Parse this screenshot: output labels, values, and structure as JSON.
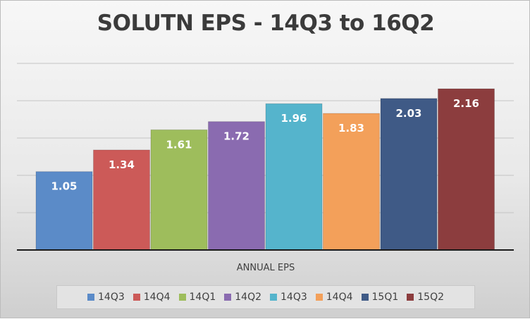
{
  "chart_data": {
    "type": "bar",
    "title": "SOLUTN EPS - 14Q3 to 16Q2",
    "xlabel": "ANNUAL EPS",
    "ylabel": "",
    "ylim": [
      0,
      2.5
    ],
    "grid": true,
    "legend_position": "bottom",
    "categories": [
      "ANNUAL EPS"
    ],
    "series": [
      {
        "name": "14Q3",
        "values": [
          1.05
        ],
        "label": "1.05",
        "color": "#5b8bc8"
      },
      {
        "name": "14Q4",
        "values": [
          1.34
        ],
        "label": "1.34",
        "color": "#cc5a58"
      },
      {
        "name": "14Q1",
        "values": [
          1.61
        ],
        "label": "1.61",
        "color": "#9ebd5c"
      },
      {
        "name": "14Q2",
        "values": [
          1.72
        ],
        "label": "1.72",
        "color": "#8a6bb0"
      },
      {
        "name": "14Q3",
        "values": [
          1.96
        ],
        "label": "1.96",
        "color": "#55b4cc"
      },
      {
        "name": "14Q4",
        "values": [
          1.83
        ],
        "label": "1.83",
        "color": "#f3a05a"
      },
      {
        "name": "15Q1",
        "values": [
          2.03
        ],
        "label": "2.03",
        "color": "#3f5a86"
      },
      {
        "name": "15Q2",
        "values": [
          2.16
        ],
        "label": "2.16",
        "color": "#8c3d3e"
      }
    ]
  }
}
